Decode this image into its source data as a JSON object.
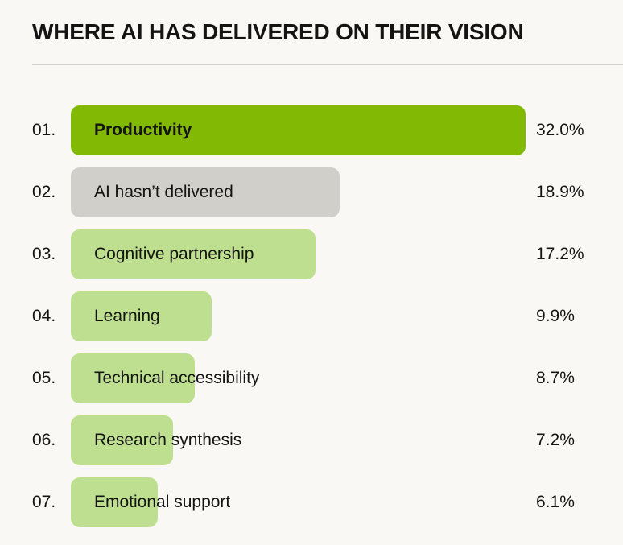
{
  "chart_data": {
    "type": "bar",
    "orientation": "horizontal",
    "title": "WHERE AI HAS DELIVERED ON THEIR VISION",
    "unit": "%",
    "xlim": [
      0,
      32.0
    ],
    "categories": [
      "Productivity",
      "AI hasn’t delivered",
      "Cognitive partnership",
      "Learning",
      "Technical accessibility",
      "Research synthesis",
      "Emotional support"
    ],
    "ranks": [
      "01.",
      "02.",
      "03.",
      "04.",
      "05.",
      "06.",
      "07."
    ],
    "values": [
      32.0,
      18.9,
      17.2,
      9.9,
      8.7,
      7.2,
      6.1
    ],
    "value_labels": [
      "32.0%",
      "18.9%",
      "17.2%",
      "9.9%",
      "8.7%",
      "7.2%",
      "6.1%"
    ],
    "bar_styles": [
      "primary",
      "neutral",
      "light",
      "light",
      "light",
      "light",
      "light"
    ]
  },
  "colors": {
    "primary": "#82b905",
    "neutral": "#d1cfca",
    "light": "#bedf90",
    "background": "#f9f8f5",
    "text": "#141413"
  }
}
